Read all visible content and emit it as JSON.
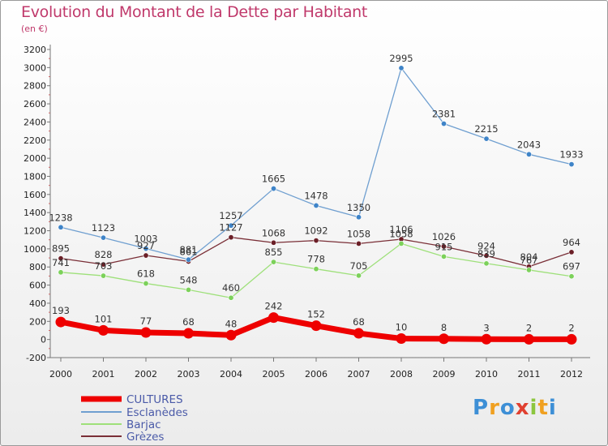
{
  "title": "Evolution du Montant de la Dette par Habitant",
  "unit": "(en €)",
  "logo": {
    "letters": [
      "P",
      "r",
      "o",
      "x",
      "i",
      "t",
      "i"
    ],
    "colors": [
      "#3d8fd6",
      "#f0a020",
      "#3d8fd6",
      "#e04030",
      "#8cc63f",
      "#f0a020",
      "#3d8fd6"
    ]
  },
  "chart_data": {
    "type": "line",
    "title": "Evolution du Montant de la Dette par Habitant",
    "ylabel": "(en €)",
    "xlabel": "",
    "x": [
      "2000",
      "2001",
      "2002",
      "2003",
      "2004",
      "2005",
      "2006",
      "2007",
      "2008",
      "2009",
      "2010",
      "2011",
      "2012"
    ],
    "ylim": [
      -200,
      3200
    ],
    "ytick_step": 200,
    "grid": false,
    "legend_position": "bottom-left",
    "series": [
      {
        "name": "CULTURES",
        "color": "#ee0000",
        "values": [
          193,
          101,
          77,
          68,
          48,
          242,
          152,
          68,
          10,
          8,
          3,
          2,
          2
        ]
      },
      {
        "name": "Esclanèdes",
        "color": "#6f9fd0",
        "values": [
          1238,
          1123,
          1003,
          881,
          1257,
          1665,
          1478,
          1350,
          2995,
          2381,
          2215,
          2043,
          1933
        ]
      },
      {
        "name": "Barjac",
        "color": "#9ee07a",
        "values": [
          741,
          703,
          618,
          548,
          460,
          855,
          778,
          705,
          1058,
          915,
          839,
          767,
          697
        ]
      },
      {
        "name": "Grèzes",
        "color": "#7a2f37",
        "values": [
          895,
          828,
          927,
          861,
          1127,
          1068,
          1092,
          1058,
          1106,
          1026,
          924,
          804,
          964
        ]
      }
    ]
  }
}
